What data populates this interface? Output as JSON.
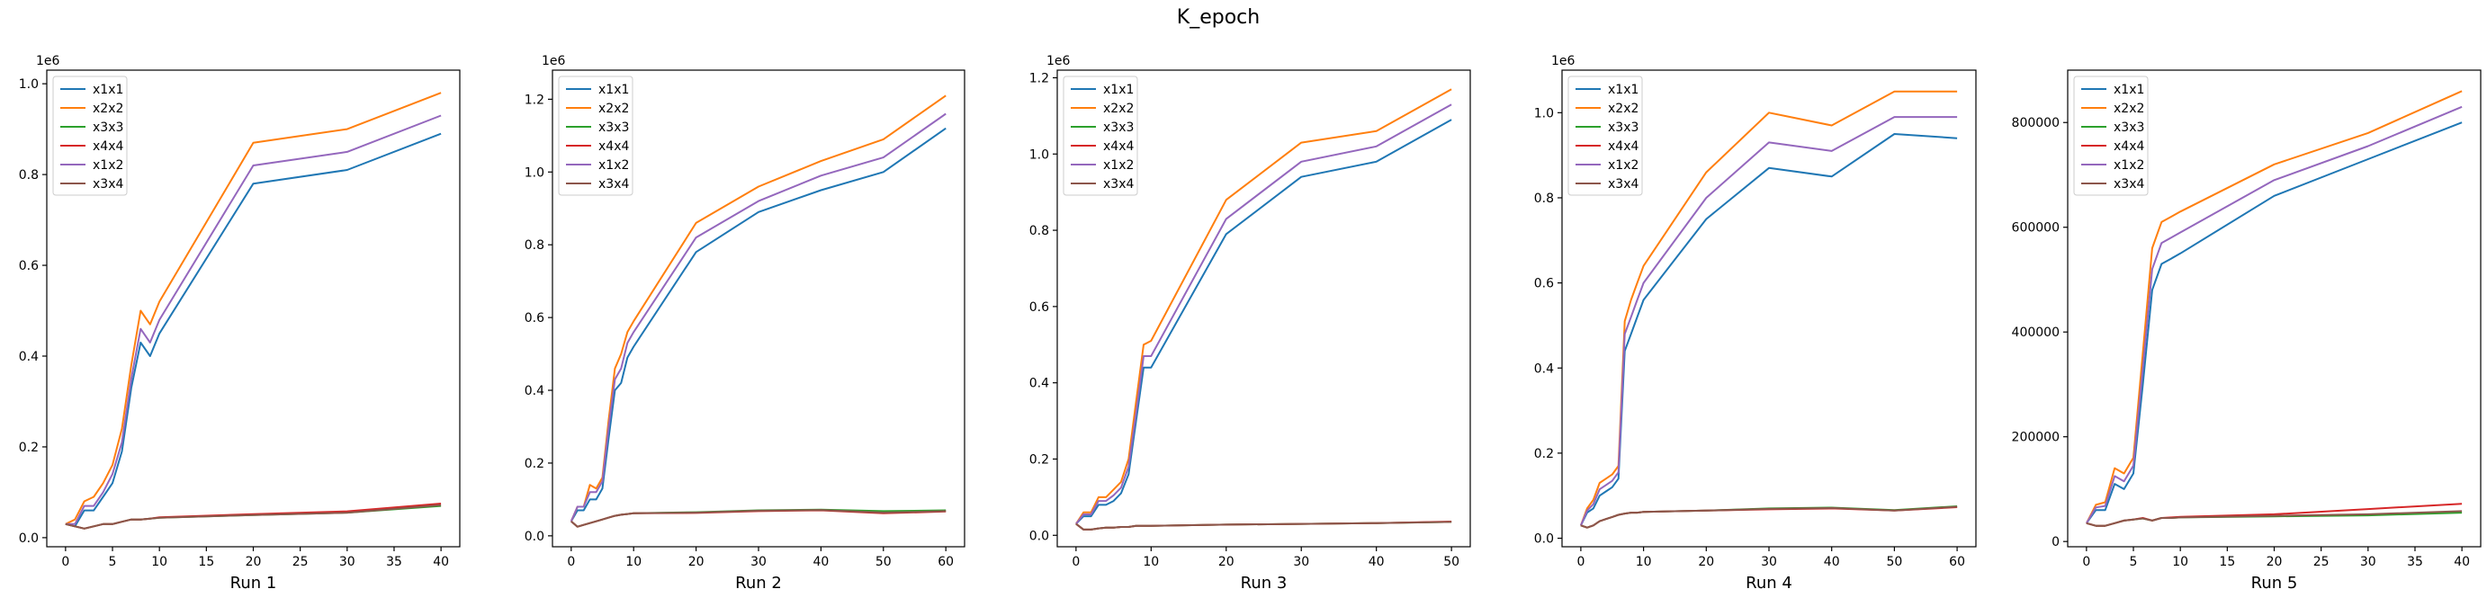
{
  "figure": {
    "title": "K_epoch"
  },
  "colors": {
    "x1x1": "#1f77b4",
    "x2x2": "#ff7f0e",
    "x3x3": "#2ca02c",
    "x4x4": "#d62728",
    "x1x2": "#9467bd",
    "x3x4": "#8c564b"
  },
  "chart_data": [
    {
      "type": "line",
      "xlabel": "Run 1",
      "offset_label": "1e6",
      "xlim": [
        -2,
        42
      ],
      "ylim": [
        -0.02,
        1.03
      ],
      "xticks": [
        0,
        5,
        10,
        15,
        20,
        25,
        30,
        35,
        40
      ],
      "yticks": [
        0.0,
        0.2,
        0.4,
        0.6,
        0.8,
        1.0
      ],
      "ytick_labels": [
        "0.0",
        "0.2",
        "0.4",
        "0.6",
        "0.8",
        "1.0"
      ],
      "legend": "upper-left",
      "x": [
        0,
        1,
        2,
        3,
        4,
        5,
        6,
        7,
        8,
        9,
        10,
        20,
        30,
        40
      ],
      "series": [
        {
          "name": "x1x1",
          "values": [
            0.03,
            0.025,
            0.06,
            0.06,
            0.09,
            0.12,
            0.19,
            0.33,
            0.43,
            0.4,
            0.45,
            0.78,
            0.81,
            0.89
          ]
        },
        {
          "name": "x2x2",
          "values": [
            0.03,
            0.04,
            0.08,
            0.09,
            0.12,
            0.16,
            0.24,
            0.38,
            0.5,
            0.47,
            0.52,
            0.87,
            0.9,
            0.98
          ]
        },
        {
          "name": "x3x3",
          "values": [
            0.03,
            0.025,
            0.02,
            0.025,
            0.03,
            0.03,
            0.035,
            0.04,
            0.04,
            0.042,
            0.044,
            0.05,
            0.055,
            0.07
          ]
        },
        {
          "name": "x4x4",
          "values": [
            0.03,
            0.025,
            0.02,
            0.025,
            0.03,
            0.03,
            0.035,
            0.04,
            0.04,
            0.042,
            0.045,
            0.052,
            0.058,
            0.075
          ]
        },
        {
          "name": "x1x2",
          "values": [
            0.03,
            0.03,
            0.07,
            0.07,
            0.1,
            0.14,
            0.21,
            0.35,
            0.46,
            0.43,
            0.48,
            0.82,
            0.85,
            0.93
          ]
        },
        {
          "name": "x3x4",
          "values": [
            0.03,
            0.025,
            0.02,
            0.025,
            0.03,
            0.03,
            0.035,
            0.04,
            0.04,
            0.042,
            0.044,
            0.05,
            0.055,
            0.072
          ]
        }
      ]
    },
    {
      "type": "line",
      "xlabel": "Run 2",
      "offset_label": "1e6",
      "xlim": [
        -3,
        63
      ],
      "ylim": [
        -0.03,
        1.28
      ],
      "xticks": [
        0,
        10,
        20,
        30,
        40,
        50,
        60
      ],
      "yticks": [
        0.0,
        0.2,
        0.4,
        0.6,
        0.8,
        1.0,
        1.2
      ],
      "ytick_labels": [
        "0.0",
        "0.2",
        "0.4",
        "0.6",
        "0.8",
        "1.0",
        "1.2"
      ],
      "legend": "upper-left",
      "x": [
        0,
        1,
        2,
        3,
        4,
        5,
        6,
        7,
        8,
        9,
        10,
        20,
        30,
        40,
        50,
        60
      ],
      "series": [
        {
          "name": "x1x1",
          "values": [
            0.04,
            0.07,
            0.07,
            0.1,
            0.1,
            0.13,
            0.27,
            0.4,
            0.42,
            0.49,
            0.52,
            0.78,
            0.89,
            0.95,
            1.0,
            1.12
          ]
        },
        {
          "name": "x2x2",
          "values": [
            0.04,
            0.08,
            0.08,
            0.14,
            0.13,
            0.16,
            0.32,
            0.46,
            0.5,
            0.56,
            0.59,
            0.86,
            0.96,
            1.03,
            1.09,
            1.21
          ]
        },
        {
          "name": "x3x3",
          "values": [
            0.04,
            0.025,
            0.03,
            0.035,
            0.04,
            0.045,
            0.05,
            0.055,
            0.058,
            0.06,
            0.062,
            0.065,
            0.07,
            0.072,
            0.068,
            0.07
          ]
        },
        {
          "name": "x4x4",
          "values": [
            0.04,
            0.025,
            0.03,
            0.035,
            0.04,
            0.045,
            0.05,
            0.055,
            0.058,
            0.06,
            0.062,
            0.063,
            0.068,
            0.07,
            0.062,
            0.067
          ]
        },
        {
          "name": "x1x2",
          "values": [
            0.04,
            0.08,
            0.08,
            0.12,
            0.12,
            0.15,
            0.3,
            0.43,
            0.46,
            0.53,
            0.56,
            0.82,
            0.92,
            0.99,
            1.04,
            1.16
          ]
        },
        {
          "name": "x3x4",
          "values": [
            0.04,
            0.025,
            0.03,
            0.035,
            0.04,
            0.045,
            0.05,
            0.055,
            0.058,
            0.06,
            0.062,
            0.064,
            0.069,
            0.071,
            0.064,
            0.068
          ]
        }
      ]
    },
    {
      "type": "line",
      "xlabel": "Run 3",
      "offset_label": "1e6",
      "xlim": [
        -2.5,
        52.5
      ],
      "ylim": [
        -0.03,
        1.22
      ],
      "xticks": [
        0,
        10,
        20,
        30,
        40,
        50
      ],
      "yticks": [
        0.0,
        0.2,
        0.4,
        0.6,
        0.8,
        1.0,
        1.2
      ],
      "ytick_labels": [
        "0.0",
        "0.2",
        "0.4",
        "0.6",
        "0.8",
        "1.0",
        "1.2"
      ],
      "legend": "upper-left",
      "x": [
        0,
        1,
        2,
        3,
        4,
        5,
        6,
        7,
        8,
        9,
        10,
        20,
        30,
        40,
        50
      ],
      "series": [
        {
          "name": "x1x1",
          "values": [
            0.03,
            0.05,
            0.05,
            0.08,
            0.08,
            0.09,
            0.11,
            0.16,
            0.3,
            0.44,
            0.44,
            0.79,
            0.94,
            0.98,
            1.09
          ]
        },
        {
          "name": "x2x2",
          "values": [
            0.03,
            0.06,
            0.06,
            0.1,
            0.1,
            0.12,
            0.14,
            0.2,
            0.35,
            0.5,
            0.51,
            0.88,
            1.03,
            1.06,
            1.17
          ]
        },
        {
          "name": "x3x3",
          "values": [
            0.03,
            0.015,
            0.015,
            0.018,
            0.02,
            0.02,
            0.022,
            0.022,
            0.025,
            0.025,
            0.025,
            0.028,
            0.03,
            0.032,
            0.035
          ]
        },
        {
          "name": "x4x4",
          "values": [
            0.03,
            0.015,
            0.015,
            0.018,
            0.02,
            0.02,
            0.022,
            0.022,
            0.025,
            0.025,
            0.025,
            0.028,
            0.03,
            0.032,
            0.036
          ]
        },
        {
          "name": "x1x2",
          "values": [
            0.03,
            0.055,
            0.055,
            0.09,
            0.09,
            0.105,
            0.125,
            0.18,
            0.32,
            0.47,
            0.47,
            0.83,
            0.98,
            1.02,
            1.13
          ]
        },
        {
          "name": "x3x4",
          "values": [
            0.03,
            0.015,
            0.015,
            0.018,
            0.02,
            0.02,
            0.022,
            0.022,
            0.025,
            0.025,
            0.025,
            0.028,
            0.03,
            0.032,
            0.035
          ]
        }
      ]
    },
    {
      "type": "line",
      "xlabel": "Run 4",
      "offset_label": "1e6",
      "xlim": [
        -3,
        63
      ],
      "ylim": [
        -0.02,
        1.1
      ],
      "xticks": [
        0,
        10,
        20,
        30,
        40,
        50,
        60
      ],
      "yticks": [
        0.0,
        0.2,
        0.4,
        0.6,
        0.8,
        1.0
      ],
      "ytick_labels": [
        "0.0",
        "0.2",
        "0.4",
        "0.6",
        "0.8",
        "1.0"
      ],
      "legend": "upper-left",
      "x": [
        0,
        1,
        2,
        3,
        4,
        5,
        6,
        7,
        8,
        9,
        10,
        20,
        30,
        40,
        50,
        60
      ],
      "series": [
        {
          "name": "x1x1",
          "values": [
            0.03,
            0.06,
            0.07,
            0.1,
            0.11,
            0.12,
            0.14,
            0.44,
            0.48,
            0.52,
            0.56,
            0.75,
            0.87,
            0.85,
            0.95,
            0.94
          ]
        },
        {
          "name": "x2x2",
          "values": [
            0.03,
            0.07,
            0.09,
            0.13,
            0.14,
            0.15,
            0.17,
            0.51,
            0.56,
            0.6,
            0.64,
            0.86,
            1.0,
            0.97,
            1.05,
            1.05
          ]
        },
        {
          "name": "x3x3",
          "values": [
            0.03,
            0.025,
            0.03,
            0.04,
            0.045,
            0.05,
            0.055,
            0.058,
            0.06,
            0.06,
            0.062,
            0.065,
            0.07,
            0.072,
            0.066,
            0.075
          ]
        },
        {
          "name": "x4x4",
          "values": [
            0.03,
            0.025,
            0.03,
            0.04,
            0.045,
            0.05,
            0.055,
            0.058,
            0.06,
            0.06,
            0.062,
            0.065,
            0.068,
            0.07,
            0.065,
            0.073
          ]
        },
        {
          "name": "x1x2",
          "values": [
            0.03,
            0.065,
            0.08,
            0.115,
            0.125,
            0.135,
            0.155,
            0.48,
            0.52,
            0.56,
            0.6,
            0.8,
            0.93,
            0.91,
            0.99,
            0.99
          ]
        },
        {
          "name": "x3x4",
          "values": [
            0.03,
            0.025,
            0.03,
            0.04,
            0.045,
            0.05,
            0.055,
            0.058,
            0.06,
            0.06,
            0.062,
            0.065,
            0.069,
            0.071,
            0.065,
            0.074
          ]
        }
      ]
    },
    {
      "type": "line",
      "xlabel": "Run 5",
      "offset_label": "",
      "xlim": [
        -2,
        42
      ],
      "ylim": [
        -10000,
        900000
      ],
      "xticks": [
        0,
        5,
        10,
        15,
        20,
        25,
        30,
        35,
        40
      ],
      "yticks": [
        0,
        200000,
        400000,
        600000,
        800000
      ],
      "ytick_labels": [
        "0",
        "200000",
        "400000",
        "600000",
        "800000"
      ],
      "legend": "upper-left",
      "x": [
        0,
        1,
        2,
        3,
        4,
        5,
        6,
        7,
        8,
        9,
        10,
        20,
        30,
        40
      ],
      "series": [
        {
          "name": "x1x1",
          "values": [
            35000,
            60000,
            60000,
            110000,
            100000,
            130000,
            300000,
            480000,
            530000,
            540000,
            550000,
            660000,
            730000,
            800000
          ]
        },
        {
          "name": "x2x2",
          "values": [
            35000,
            70000,
            75000,
            140000,
            130000,
            160000,
            360000,
            560000,
            610000,
            620000,
            630000,
            720000,
            780000,
            860000
          ]
        },
        {
          "name": "x3x3",
          "values": [
            35000,
            30000,
            30000,
            35000,
            40000,
            42000,
            44000,
            40000,
            45000,
            45000,
            46000,
            48000,
            50000,
            55000
          ]
        },
        {
          "name": "x4x4",
          "values": [
            35000,
            30000,
            30000,
            35000,
            40000,
            42000,
            45000,
            40000,
            45000,
            46000,
            47000,
            52000,
            62000,
            72000
          ]
        },
        {
          "name": "x1x2",
          "values": [
            35000,
            65000,
            68000,
            125000,
            115000,
            145000,
            330000,
            520000,
            570000,
            580000,
            590000,
            690000,
            755000,
            830000
          ]
        },
        {
          "name": "x3x4",
          "values": [
            35000,
            30000,
            30000,
            35000,
            40000,
            42000,
            44000,
            40000,
            45000,
            45000,
            46000,
            49000,
            52000,
            58000
          ]
        }
      ]
    }
  ]
}
